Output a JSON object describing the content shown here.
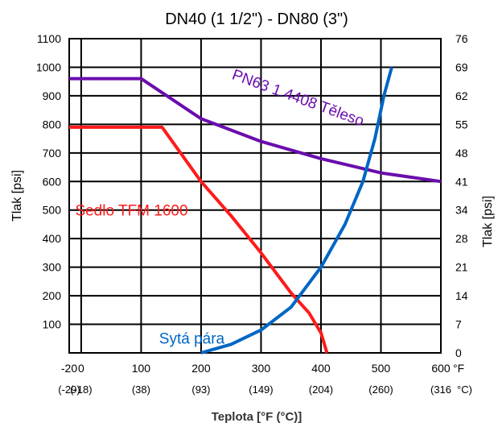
{
  "chart_data": {
    "type": "line",
    "title": "DN40 (1 1/2\") - DN80 (3\")",
    "xlabel": "Teplota [°F (°C)]",
    "ylabel_left": "Tlak [psi]",
    "ylabel_right": "Tlak [psi]",
    "xlim": [
      -20,
      600
    ],
    "ylim": [
      0,
      1100
    ],
    "grid": true,
    "x_ticks": [
      {
        "value": -20,
        "f": "-20",
        "c": "(-29)"
      },
      {
        "value": 0,
        "f": "0",
        "c": "(-18)"
      },
      {
        "value": 100,
        "f": "100",
        "c": "(38)"
      },
      {
        "value": 200,
        "f": "200",
        "c": "(93)"
      },
      {
        "value": 300,
        "f": "300",
        "c": "(149)"
      },
      {
        "value": 400,
        "f": "400",
        "c": "(204)"
      },
      {
        "value": 500,
        "f": "500",
        "c": "(260)"
      },
      {
        "value": 600,
        "f": "600",
        "c": "(316"
      }
    ],
    "x_unit_f": "°F",
    "x_unit_c": "°C)",
    "y_ticks_left": [
      {
        "value": 100,
        "label": "100"
      },
      {
        "value": 200,
        "label": "200"
      },
      {
        "value": 300,
        "label": "300"
      },
      {
        "value": 400,
        "label": "400"
      },
      {
        "value": 500,
        "label": "500"
      },
      {
        "value": 600,
        "label": "600"
      },
      {
        "value": 700,
        "label": "700"
      },
      {
        "value": 800,
        "label": "800"
      },
      {
        "value": 900,
        "label": "900"
      },
      {
        "value": 1000,
        "label": "1000"
      },
      {
        "value": 1100,
        "label": "1100"
      }
    ],
    "y_ticks_right": [
      {
        "value": 0,
        "label": "0"
      },
      {
        "value": 100,
        "label": "7"
      },
      {
        "value": 200,
        "label": "14"
      },
      {
        "value": 300,
        "label": "21"
      },
      {
        "value": 400,
        "label": "28"
      },
      {
        "value": 500,
        "label": "34"
      },
      {
        "value": 600,
        "label": "41"
      },
      {
        "value": 700,
        "label": "48"
      },
      {
        "value": 800,
        "label": "55"
      },
      {
        "value": 900,
        "label": "62"
      },
      {
        "value": 1000,
        "label": "69"
      },
      {
        "value": 1100,
        "label": "76"
      }
    ],
    "series": [
      {
        "name": "PN63 1.4408 Těleso",
        "color": "#6a0dad",
        "x": [
          -20,
          100,
          200,
          300,
          400,
          500,
          600
        ],
        "y": [
          960,
          960,
          820,
          740,
          680,
          630,
          600
        ]
      },
      {
        "name": "Sedlo TFM 1600",
        "color": "#ff1a1a",
        "x": [
          -20,
          135,
          200,
          250,
          300,
          350,
          380,
          400,
          410
        ],
        "y": [
          790,
          790,
          600,
          480,
          350,
          210,
          140,
          70,
          0
        ]
      },
      {
        "name": "Sytá pára",
        "color": "#0066c4",
        "x": [
          200,
          250,
          300,
          350,
          400,
          440,
          470,
          490,
          505,
          518
        ],
        "y": [
          0,
          30,
          80,
          160,
          300,
          450,
          600,
          750,
          900,
          1000
        ]
      }
    ]
  }
}
